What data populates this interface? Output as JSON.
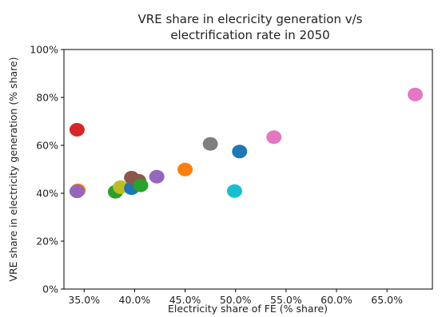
{
  "chart_data": {
    "type": "scatter",
    "title": [
      "VRE share in elecricity generation v/s",
      "electrification rate in 2050"
    ],
    "xlabel": "Electricity share of FE (% share)",
    "ylabel": "VRE share in electricity generation (% share)",
    "xlim": [
      0.33,
      0.695
    ],
    "ylim": [
      0,
      1.0
    ],
    "xticks": [
      0.35,
      0.4,
      0.45,
      0.5,
      0.55,
      0.6,
      0.65
    ],
    "xtick_labels": [
      "35.0%",
      "40.0%",
      "45.0%",
      "50.0%",
      "55.0%",
      "60.0%",
      "65.0%"
    ],
    "yticks": [
      0,
      0.2,
      0.4,
      0.6,
      0.8,
      1.0
    ],
    "ytick_labels": [
      "0%",
      "20%",
      "40%",
      "60%",
      "80%",
      "100%"
    ],
    "grid": false,
    "points": [
      {
        "x": 0.343,
        "y": 0.665,
        "color": "#d62728"
      },
      {
        "x": 0.344,
        "y": 0.412,
        "color": "#ff7f0e"
      },
      {
        "x": 0.343,
        "y": 0.408,
        "color": "#9467bd"
      },
      {
        "x": 0.381,
        "y": 0.406,
        "color": "#2ca02c"
      },
      {
        "x": 0.386,
        "y": 0.425,
        "color": "#bcbd22"
      },
      {
        "x": 0.397,
        "y": 0.421,
        "color": "#1f77b4"
      },
      {
        "x": 0.404,
        "y": 0.452,
        "color": "#8c564b"
      },
      {
        "x": 0.397,
        "y": 0.465,
        "color": "#8c564b"
      },
      {
        "x": 0.406,
        "y": 0.433,
        "color": "#2ca02c"
      },
      {
        "x": 0.422,
        "y": 0.469,
        "color": "#9467bd"
      },
      {
        "x": 0.45,
        "y": 0.499,
        "color": "#ff7f0e"
      },
      {
        "x": 0.475,
        "y": 0.606,
        "color": "#7f7f7f"
      },
      {
        "x": 0.504,
        "y": 0.574,
        "color": "#1f77b4"
      },
      {
        "x": 0.499,
        "y": 0.409,
        "color": "#17becf"
      },
      {
        "x": 0.538,
        "y": 0.634,
        "color": "#e377c2"
      },
      {
        "x": 0.678,
        "y": 0.812,
        "color": "#e377c2"
      }
    ]
  }
}
